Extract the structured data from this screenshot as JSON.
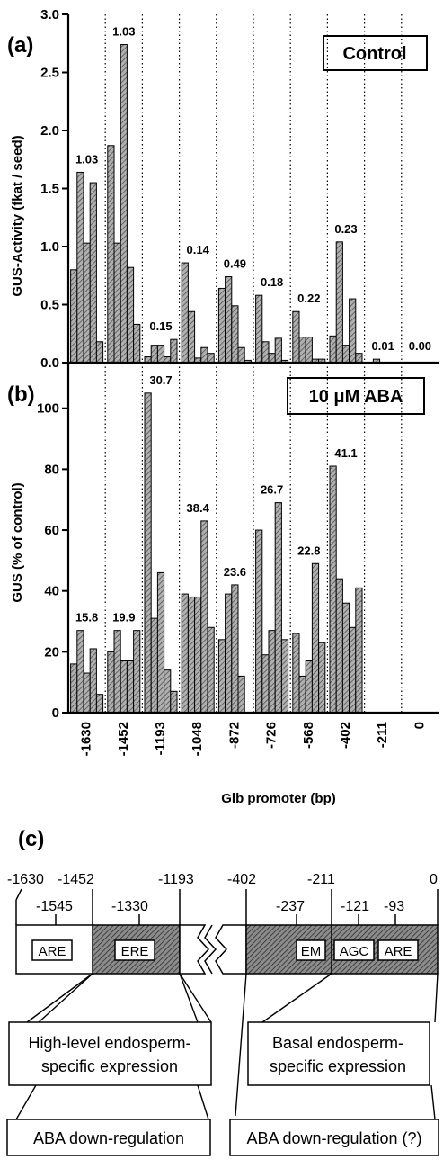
{
  "chart_data": [
    {
      "panel": "(a)",
      "type": "bar",
      "inset_label": "Control",
      "ylabel": "GUS-Activity (fkat / seed)",
      "ylim": [
        0,
        3.0
      ],
      "yticks": [
        "0.0",
        "0.5",
        "1.0",
        "1.5",
        "2.0",
        "2.5",
        "3.0"
      ],
      "groups": [
        {
          "category": "-1630",
          "label": "1.03",
          "values": [
            0.8,
            1.64,
            1.03,
            1.55,
            0.18
          ]
        },
        {
          "category": "-1452",
          "label": "1.03",
          "values": [
            1.87,
            1.03,
            2.74,
            0.82,
            0.33
          ]
        },
        {
          "category": "-1193",
          "label": "0.15",
          "values": [
            0.05,
            0.15,
            0.15,
            0.05,
            0.2
          ]
        },
        {
          "category": "-1048",
          "label": "0.14",
          "values": [
            0.86,
            0.44,
            0.04,
            0.13,
            0.08
          ]
        },
        {
          "category": "-872",
          "label": "0.49",
          "values": [
            0.64,
            0.74,
            0.49,
            0.13,
            0.02
          ]
        },
        {
          "category": "-726",
          "label": "0.18",
          "values": [
            0.58,
            0.18,
            0.08,
            0.21,
            0.02
          ]
        },
        {
          "category": "-568",
          "label": "0.22",
          "values": [
            0.44,
            0.22,
            0.22,
            0.03,
            0.03
          ]
        },
        {
          "category": "-402",
          "label": "0.23",
          "values": [
            0.23,
            1.04,
            0.15,
            0.55,
            0.08
          ]
        },
        {
          "category": "-211",
          "label": "0.01",
          "values": [
            0.0,
            0.03,
            0.0,
            0.0,
            0.0
          ]
        },
        {
          "category": "0",
          "label": "0.00",
          "values": [
            0.0,
            0.0,
            0.0,
            0.0,
            0.0
          ]
        }
      ]
    },
    {
      "panel": "(b)",
      "type": "bar",
      "inset_label": "10 μM ABA",
      "ylabel": "GUS (% of control)",
      "ylim": [
        0,
        115
      ],
      "yticks": [
        "0",
        "20",
        "40",
        "60",
        "80",
        "100"
      ],
      "xlabel": "Glb promoter (bp)",
      "groups": [
        {
          "category": "-1630",
          "label": "15.8",
          "values": [
            16,
            27,
            13,
            21,
            6
          ]
        },
        {
          "category": "-1452",
          "label": "19.9",
          "values": [
            20,
            27,
            17,
            17,
            27
          ]
        },
        {
          "category": "-1193",
          "label": "30.7",
          "values": [
            105,
            31,
            46,
            14,
            7
          ]
        },
        {
          "category": "-1048",
          "label": "38.4",
          "values": [
            39,
            38,
            38,
            63,
            28
          ]
        },
        {
          "category": "-872",
          "label": "23.6",
          "values": [
            24,
            39,
            42,
            12,
            0
          ]
        },
        {
          "category": "-726",
          "label": "26.7",
          "values": [
            60,
            19,
            27,
            69,
            24
          ]
        },
        {
          "category": "-568",
          "label": "22.8",
          "values": [
            26,
            12,
            17,
            49,
            23
          ]
        },
        {
          "category": "-402",
          "label": "41.1",
          "values": [
            81,
            44,
            36,
            28,
            41
          ]
        },
        {
          "category": "-211",
          "label": "",
          "values": []
        },
        {
          "category": "0",
          "label": "",
          "values": []
        }
      ]
    }
  ],
  "diagram": {
    "panel": "(c)",
    "top_numbers": [
      "-1630",
      "-1452",
      "-1193",
      "-402",
      "-211",
      "0"
    ],
    "sub_numbers": [
      "-1545",
      "-1330",
      "-237",
      "-121",
      "-93"
    ],
    "elements": [
      "ARE",
      "ERE",
      "EM",
      "AGC",
      "ARE"
    ],
    "notes": {
      "high_line1": "High-level endosperm-",
      "high_line2": "specific expression",
      "basal_line1": "Basal endosperm-",
      "basal_line2": "specific expression",
      "aba_left": "ABA down-regulation",
      "aba_right": "ABA down-regulation (?)"
    }
  },
  "colors": {
    "bar_fill": "#9a9a9a",
    "dark_fill": "#7d7d7d",
    "ink": "#000000"
  }
}
